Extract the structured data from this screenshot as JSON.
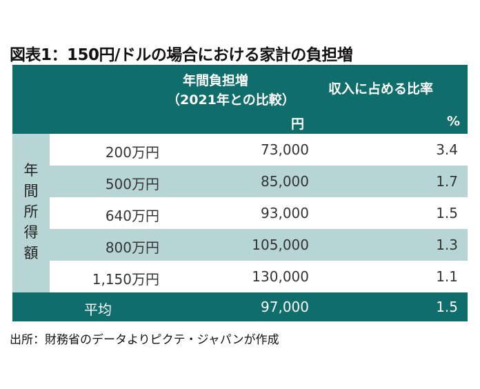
{
  "title": "図表1：150円/ドルの場合における家計の負担増",
  "header": {
    "col1_line1": "年間負担増",
    "col1_line2": "（2021年との比較）",
    "col1_unit": "円",
    "col2_line1": "収入に占める比率",
    "col2_unit": "%"
  },
  "side_label": [
    "年",
    "間",
    "所",
    "得",
    "額"
  ],
  "rows": [
    {
      "income": "200万円",
      "burden": "73,000",
      "ratio": "3.4"
    },
    {
      "income": "500万円",
      "burden": "85,000",
      "ratio": "1.7"
    },
    {
      "income": "640万円",
      "burden": "93,000",
      "ratio": "1.5"
    },
    {
      "income": "800万円",
      "burden": "105,000",
      "ratio": "1.3"
    },
    {
      "income": "1,150万円",
      "burden": "130,000",
      "ratio": "1.1"
    }
  ],
  "average": {
    "label": "平均",
    "burden": "97,000",
    "ratio": "1.5"
  },
  "source": "出所：財務省のデータよりピクテ・ジャパンが作成",
  "colors": {
    "header": "#0f6e6b",
    "tint": "#b7d5d4"
  }
}
